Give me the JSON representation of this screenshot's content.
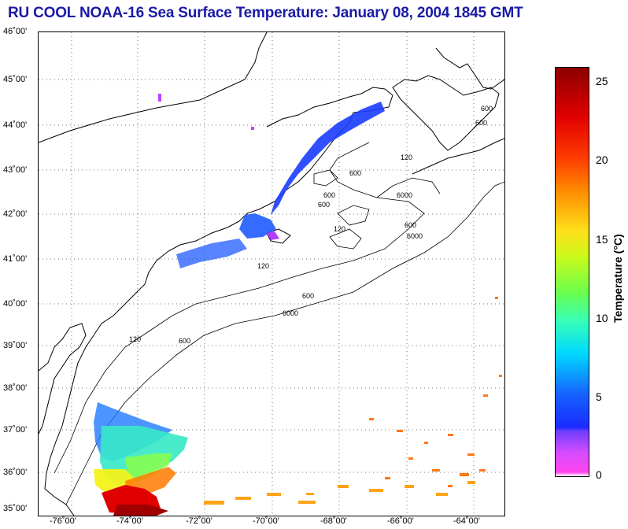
{
  "title": "RU COOL  NOAA-16  Sea Surface Temperature:  January 08, 2004 1845 GMT",
  "latitude_labels": [
    "46˚00'",
    "45˚00'",
    "44˚00'",
    "43˚00'",
    "42˚00'",
    "41˚00'",
    "40˚00'",
    "39˚00'",
    "38˚00'",
    "37˚00'",
    "36˚00'",
    "35˚00'"
  ],
  "longitude_labels": [
    "-76˚00'",
    "-74˚00'",
    "-72˚00'",
    "-70˚00'",
    "-68˚00'",
    "-66˚00'",
    "-64˚00'"
  ],
  "contour_labels": [
    "600",
    "600",
    "600",
    "6000",
    "120",
    "600",
    "6000",
    "600",
    "120",
    "600",
    "6000",
    "120",
    "600",
    "120",
    "600"
  ],
  "colorbar": {
    "label": "Temperature (°C)",
    "ticks": [
      "25",
      "20",
      "15",
      "10",
      "5",
      "0"
    ],
    "range": [
      0,
      26
    ]
  },
  "colors": {
    "title": "#1a1aa6",
    "coast": "#000000"
  }
}
